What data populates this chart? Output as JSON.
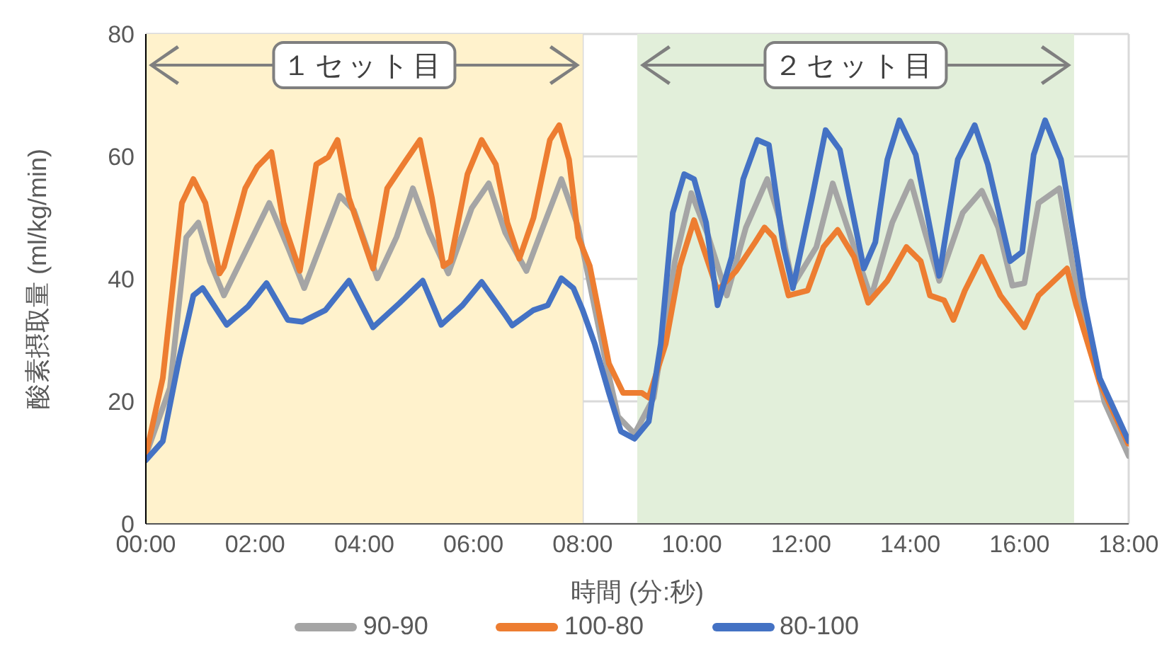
{
  "chart_data": {
    "type": "line",
    "xlabel": "時間 (分:秒)",
    "ylabel": "酸素摂取量 (ml/kg/min)",
    "xlim": [
      0,
      18
    ],
    "xticks": [
      {
        "value": 0,
        "label": "00:00"
      },
      {
        "value": 2,
        "label": "02:00"
      },
      {
        "value": 4,
        "label": "04:00"
      },
      {
        "value": 6,
        "label": "06:00"
      },
      {
        "value": 8,
        "label": "08:00"
      },
      {
        "value": 10,
        "label": "10:00"
      },
      {
        "value": 12,
        "label": "12:00"
      },
      {
        "value": 14,
        "label": "14:00"
      },
      {
        "value": 16,
        "label": "16:00"
      },
      {
        "value": 18,
        "label": "18:00"
      }
    ],
    "ylim": [
      0,
      80
    ],
    "yticks": [
      0,
      20,
      40,
      60,
      80
    ],
    "grid": true,
    "legend": "bottom",
    "marker": "none",
    "line_style": "solid",
    "bands": [
      {
        "axis": "x",
        "from": 0,
        "to": 8,
        "label": "１セット目",
        "color": "#fff2cc"
      },
      {
        "axis": "x",
        "from": 9,
        "to": 17,
        "label": "２セット目",
        "color": "#e2efda"
      }
    ],
    "series": [
      {
        "name": "90-90",
        "color": "#a5a5a5",
        "x": [
          0,
          0.44,
          0.74,
          0.96,
          1.17,
          1.43,
          1.91,
          2.26,
          2.6,
          2.9,
          3.55,
          3.81,
          4.24,
          4.59,
          4.89,
          5.19,
          5.54,
          5.97,
          6.28,
          6.58,
          6.97,
          7.27,
          7.61,
          7.92,
          8.39,
          8.65,
          8.95,
          9.3,
          9.69,
          9.99,
          10.3,
          10.64,
          10.99,
          11.38,
          11.6,
          11.85,
          12.28,
          12.58,
          12.88,
          13.28,
          13.67,
          14.01,
          14.27,
          14.53,
          14.96,
          15.31,
          15.61,
          15.87,
          16.09,
          16.35,
          16.73,
          17.04,
          17.56,
          18
        ],
        "values": [
          11.2,
          22.2,
          46.8,
          49.2,
          42.9,
          37.3,
          46,
          52.4,
          45.2,
          38.5,
          53.6,
          51.2,
          40.1,
          46.8,
          54.8,
          47.6,
          40.9,
          51.6,
          55.6,
          47.6,
          41.3,
          48.4,
          56.3,
          48.4,
          27.8,
          17.5,
          14.7,
          20.6,
          42.9,
          54,
          47,
          37.3,
          48.4,
          56.3,
          50,
          38.9,
          45.2,
          55.6,
          47.6,
          36.9,
          49.2,
          55.9,
          47.6,
          39.7,
          50.8,
          54.4,
          48.4,
          38.9,
          39.3,
          52.4,
          54.8,
          38.9,
          19.8,
          11.1
        ]
      },
      {
        "name": "100-80",
        "color": "#ed7d31",
        "x": [
          0,
          0.31,
          0.66,
          0.87,
          1.09,
          1.35,
          1.43,
          1.82,
          2.04,
          2.3,
          2.52,
          2.82,
          3.12,
          3.34,
          3.51,
          3.72,
          4.16,
          4.42,
          4.76,
          5.02,
          5.24,
          5.45,
          5.58,
          5.89,
          6.15,
          6.41,
          6.62,
          6.84,
          7.1,
          7.4,
          7.57,
          7.75,
          7.92,
          8.13,
          8.48,
          8.74,
          9.08,
          9.21,
          9.52,
          9.78,
          10.04,
          10.47,
          10.81,
          11.16,
          11.33,
          11.5,
          11.77,
          12.12,
          12.41,
          12.67,
          12.97,
          13.23,
          13.58,
          13.93,
          14.19,
          14.36,
          14.62,
          14.79,
          15,
          15.31,
          15.65,
          16.09,
          16.35,
          16.87,
          17.04,
          17.47,
          17.99
        ],
        "values": [
          11.2,
          23.8,
          52.4,
          56.3,
          52.4,
          40.9,
          42,
          54.8,
          58.3,
          60.7,
          49.2,
          41.3,
          58.7,
          59.9,
          62.7,
          53.2,
          41.7,
          54.8,
          59.3,
          62.7,
          53.2,
          42.1,
          42.9,
          57.1,
          62.7,
          58.7,
          49.2,
          43.3,
          50,
          62.7,
          65.1,
          59.5,
          46.8,
          42.1,
          26.2,
          21.4,
          21.4,
          20.6,
          29.4,
          42.1,
          49.6,
          38.1,
          41.3,
          46,
          48.4,
          46.8,
          37.3,
          38.1,
          45.2,
          48,
          43.6,
          36.1,
          39.7,
          45.2,
          42.9,
          37.3,
          36.5,
          33.3,
          38.1,
          43.6,
          37.3,
          32.1,
          37.3,
          41.7,
          35.7,
          23,
          13.1
        ]
      },
      {
        "name": "80-100",
        "color": "#4472c4",
        "x": [
          0,
          0.31,
          0.61,
          0.87,
          1.04,
          1.48,
          1.87,
          2.21,
          2.6,
          2.86,
          3.29,
          3.72,
          4.16,
          4.64,
          5.07,
          5.41,
          5.8,
          6.15,
          6.58,
          6.71,
          7.1,
          7.36,
          7.61,
          7.83,
          8,
          8.22,
          8.48,
          8.7,
          8.95,
          9.21,
          9.43,
          9.65,
          9.86,
          10.04,
          10.26,
          10.47,
          10.73,
          10.94,
          11.2,
          11.41,
          11.68,
          11.85,
          12.2,
          12.45,
          12.71,
          13.15,
          13.36,
          13.58,
          13.8,
          14.1,
          14.53,
          14.87,
          15.18,
          15.42,
          15.83,
          16.05,
          16.26,
          16.47,
          16.76,
          17.04,
          17.17,
          17.47,
          18
        ],
        "values": [
          10.4,
          13.5,
          27,
          37.3,
          38.5,
          32.5,
          35.5,
          39.3,
          33.3,
          33,
          34.9,
          39.7,
          32.1,
          36,
          39.7,
          32.5,
          35.7,
          39.5,
          34.1,
          32.4,
          34.9,
          35.7,
          40.1,
          38.5,
          34.9,
          29.4,
          21.4,
          15.1,
          13.9,
          16.7,
          29.4,
          50.8,
          57.1,
          56.3,
          49.2,
          35.7,
          43.6,
          56.3,
          62.7,
          61.9,
          45.2,
          38.5,
          53.2,
          64.3,
          61.1,
          41.7,
          46,
          59.5,
          65.9,
          60.3,
          40.5,
          59.5,
          65.1,
          58.7,
          42.9,
          44.4,
          60.3,
          65.9,
          59.5,
          44.4,
          36.9,
          23.8,
          13.5
        ]
      }
    ]
  }
}
